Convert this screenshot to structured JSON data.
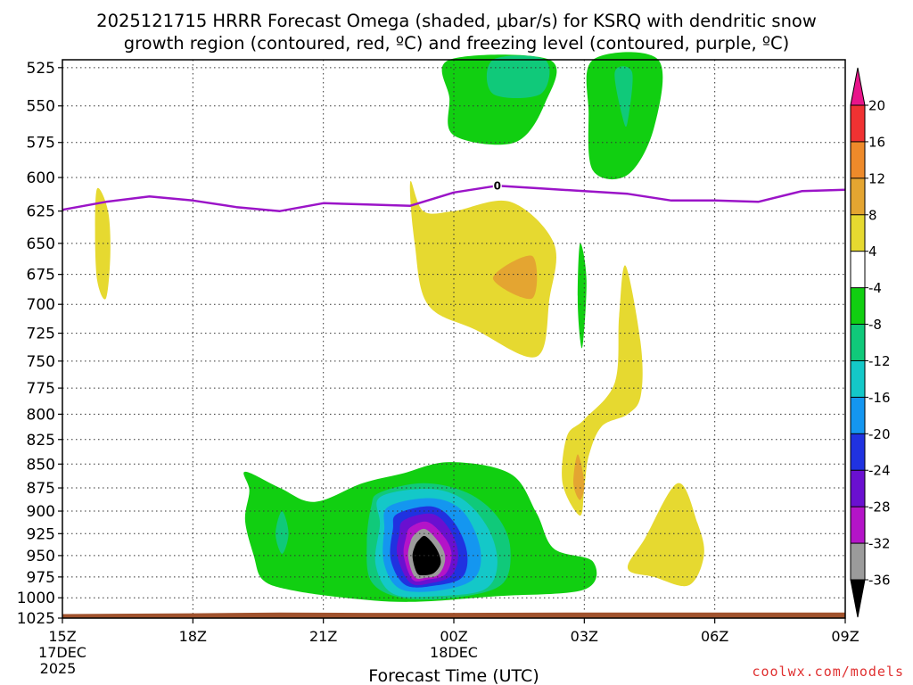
{
  "chart_data": {
    "type": "contour",
    "title_line1": "2025121715 HRRR Forecast Omega (shaded, μbar/s) for KSRQ with dendritic snow",
    "title_line2": "growth region (contoured, red, ºC) and freezing level (contoured, purple, ºC)",
    "xlabel": "Forecast Time (UTC)",
    "x_ticks": [
      {
        "hour": 0,
        "label": "15Z",
        "sub1": "17DEC",
        "sub2": "2025"
      },
      {
        "hour": 3,
        "label": "18Z",
        "sub1": "",
        "sub2": ""
      },
      {
        "hour": 6,
        "label": "21Z",
        "sub1": "",
        "sub2": ""
      },
      {
        "hour": 9,
        "label": "00Z",
        "sub1": "18DEC",
        "sub2": ""
      },
      {
        "hour": 12,
        "label": "03Z",
        "sub1": "",
        "sub2": ""
      },
      {
        "hour": 15,
        "label": "06Z",
        "sub1": "",
        "sub2": ""
      },
      {
        "hour": 18,
        "label": "09Z",
        "sub1": "",
        "sub2": ""
      }
    ],
    "xlim_hours": [
      0,
      18
    ],
    "y_ticks_hpa": [
      525,
      550,
      575,
      600,
      625,
      650,
      675,
      700,
      725,
      750,
      775,
      800,
      825,
      850,
      875,
      900,
      925,
      950,
      975,
      1000,
      1025
    ],
    "ylim_hpa": [
      520,
      1025
    ],
    "colorbar": {
      "labels": [
        "20",
        "16",
        "12",
        "8",
        "4",
        "-4",
        "-8",
        "-12",
        "-16",
        "-20",
        "-24",
        "-28",
        "-32",
        "-36"
      ],
      "bins": [
        {
          "range": [
            16,
            20
          ],
          "color": "#f03232"
        },
        {
          "range": [
            12,
            16
          ],
          "color": "#ee8a2a"
        },
        {
          "range": [
            8,
            12
          ],
          "color": "#e4a531"
        },
        {
          "range": [
            4,
            8
          ],
          "color": "#e6d930"
        },
        {
          "range": [
            -4,
            4
          ],
          "color": "#ffffff"
        },
        {
          "range": [
            -8,
            -4
          ],
          "color": "#11cf11"
        },
        {
          "range": [
            -12,
            -8
          ],
          "color": "#10c97a"
        },
        {
          "range": [
            -16,
            -12
          ],
          "color": "#14c8c8"
        },
        {
          "range": [
            -20,
            -16
          ],
          "color": "#1496f0"
        },
        {
          "range": [
            -24,
            -20
          ],
          "color": "#2032e0"
        },
        {
          "range": [
            -28,
            -24
          ],
          "color": "#6a10d0"
        },
        {
          "range": [
            -32,
            -28
          ],
          "color": "#b414c8"
        },
        {
          "range": [
            -36,
            -32
          ],
          "color": "#9b9b9b"
        }
      ],
      "top_arrow_color": "#e8158a",
      "bottom_arrow_color": "#000000"
    },
    "freezing_level": {
      "label": "0",
      "color": "#9b14c8",
      "points": [
        [
          0,
          624
        ],
        [
          1,
          618
        ],
        [
          2,
          614
        ],
        [
          3,
          617
        ],
        [
          4,
          622
        ],
        [
          5,
          625
        ],
        [
          6,
          619
        ],
        [
          7,
          620
        ],
        [
          8,
          621
        ],
        [
          9,
          611
        ],
        [
          10,
          606
        ],
        [
          11,
          608
        ],
        [
          12,
          610
        ],
        [
          13,
          612
        ],
        [
          14,
          617
        ],
        [
          15,
          617
        ],
        [
          16,
          618
        ],
        [
          17,
          610
        ],
        [
          18,
          609
        ]
      ]
    },
    "terrain_color": "#a0522d",
    "shaded_regions": [
      {
        "value": -6,
        "color": "#11cf11",
        "points": [
          [
            8.9,
            520
          ],
          [
            11.2,
            520
          ],
          [
            11.1,
            548
          ],
          [
            10.4,
            575
          ],
          [
            9.0,
            570
          ],
          [
            8.9,
            545
          ]
        ]
      },
      {
        "value": -6,
        "color": "#11cf11",
        "points": [
          [
            12.2,
            520
          ],
          [
            13.7,
            520
          ],
          [
            13.6,
            565
          ],
          [
            13.0,
            598
          ],
          [
            12.2,
            595
          ],
          [
            12.1,
            555
          ]
        ]
      },
      {
        "value": -10,
        "color": "#10c97a",
        "points": [
          [
            9.9,
            520
          ],
          [
            11.1,
            520
          ],
          [
            11.0,
            542
          ],
          [
            9.9,
            542
          ]
        ]
      },
      {
        "value": -10,
        "color": "#10c97a",
        "points": [
          [
            12.7,
            528
          ],
          [
            13.1,
            528
          ],
          [
            13.0,
            560
          ],
          [
            12.9,
            560
          ]
        ]
      },
      {
        "value": 6,
        "color": "#e6d930",
        "points": [
          [
            0.8,
            608
          ],
          [
            1.05,
            625
          ],
          [
            1.1,
            660
          ],
          [
            1.0,
            695
          ],
          [
            0.8,
            680
          ],
          [
            0.75,
            640
          ]
        ]
      },
      {
        "value": 6,
        "color": "#e6d930",
        "points": [
          [
            8.0,
            603
          ],
          [
            8.3,
            625
          ],
          [
            9.0,
            625
          ],
          [
            10.3,
            618
          ],
          [
            11.3,
            650
          ],
          [
            11.2,
            695
          ],
          [
            10.9,
            746
          ],
          [
            9.5,
            722
          ],
          [
            8.4,
            700
          ],
          [
            8.1,
            650
          ]
        ]
      },
      {
        "value": 10,
        "color": "#e4a531",
        "points": [
          [
            9.9,
            678
          ],
          [
            10.8,
            660
          ],
          [
            10.8,
            695
          ]
        ]
      },
      {
        "value": -6,
        "color": "#11cf11",
        "points": [
          [
            11.9,
            650
          ],
          [
            12.05,
            680
          ],
          [
            11.95,
            738
          ],
          [
            11.85,
            700
          ]
        ]
      },
      {
        "value": 6,
        "color": "#e6d930",
        "points": [
          [
            12.95,
            668
          ],
          [
            13.3,
            735
          ],
          [
            13.3,
            782
          ],
          [
            13.0,
            800
          ],
          [
            12.4,
            812
          ],
          [
            12.1,
            842
          ],
          [
            12.0,
            875
          ],
          [
            11.9,
            905
          ],
          [
            11.5,
            870
          ],
          [
            11.6,
            822
          ],
          [
            12.0,
            805
          ],
          [
            12.7,
            770
          ],
          [
            12.8,
            710
          ]
        ]
      },
      {
        "value": 10,
        "color": "#e4a531",
        "points": [
          [
            11.85,
            840
          ],
          [
            12.0,
            870
          ],
          [
            11.9,
            888
          ],
          [
            11.75,
            870
          ]
        ]
      },
      {
        "value": 6,
        "color": "#e6d930",
        "points": [
          [
            14.15,
            870
          ],
          [
            14.6,
            913
          ],
          [
            14.75,
            950
          ],
          [
            14.4,
            985
          ],
          [
            13.6,
            975
          ],
          [
            13.0,
            965
          ],
          [
            13.4,
            930
          ]
        ]
      },
      {
        "value": -6,
        "color": "#11cf11",
        "points": [
          [
            4.2,
            858
          ],
          [
            5.0,
            875
          ],
          [
            5.8,
            890
          ],
          [
            6.9,
            870
          ],
          [
            7.8,
            860
          ],
          [
            8.9,
            848
          ],
          [
            10.3,
            860
          ],
          [
            10.9,
            902
          ],
          [
            11.3,
            942
          ],
          [
            12.2,
            957
          ],
          [
            12.0,
            990
          ],
          [
            10.0,
            998
          ],
          [
            8.0,
            1005
          ],
          [
            6.5,
            1000
          ],
          [
            5.2,
            990
          ],
          [
            4.6,
            978
          ],
          [
            4.4,
            950
          ],
          [
            4.2,
            910
          ],
          [
            4.3,
            878
          ]
        ]
      },
      {
        "value": -10,
        "color": "#10c97a",
        "points": [
          [
            7.3,
            880
          ],
          [
            8.3,
            870
          ],
          [
            9.3,
            880
          ],
          [
            10.0,
            906
          ],
          [
            10.3,
            942
          ],
          [
            10.1,
            984
          ],
          [
            9.0,
            1000
          ],
          [
            7.8,
            1000
          ],
          [
            7.1,
            980
          ],
          [
            7.0,
            935
          ],
          [
            7.1,
            895
          ]
        ]
      },
      {
        "value": -10,
        "color": "#10c97a",
        "points": [
          [
            5.05,
            900
          ],
          [
            5.2,
            925
          ],
          [
            5.05,
            948
          ],
          [
            4.9,
            925
          ]
        ]
      },
      {
        "value": -14,
        "color": "#14c8c8",
        "points": [
          [
            7.3,
            885
          ],
          [
            8.4,
            876
          ],
          [
            9.2,
            887
          ],
          [
            9.8,
            920
          ],
          [
            10.0,
            960
          ],
          [
            9.7,
            990
          ],
          [
            8.6,
            998
          ],
          [
            7.6,
            995
          ],
          [
            7.2,
            960
          ],
          [
            7.3,
            915
          ]
        ]
      },
      {
        "value": -18,
        "color": "#1496f0",
        "points": [
          [
            7.5,
            895
          ],
          [
            8.5,
            886
          ],
          [
            9.2,
            900
          ],
          [
            9.6,
            940
          ],
          [
            9.5,
            975
          ],
          [
            8.8,
            990
          ],
          [
            7.8,
            990
          ],
          [
            7.4,
            960
          ],
          [
            7.4,
            920
          ]
        ]
      },
      {
        "value": -22,
        "color": "#2032e0",
        "points": [
          [
            7.7,
            903
          ],
          [
            8.5,
            895
          ],
          [
            9.0,
            912
          ],
          [
            9.3,
            945
          ],
          [
            9.2,
            975
          ],
          [
            8.6,
            985
          ],
          [
            7.9,
            985
          ],
          [
            7.55,
            955
          ],
          [
            7.6,
            920
          ]
        ]
      },
      {
        "value": -26,
        "color": "#6a10d0",
        "points": [
          [
            7.85,
            910
          ],
          [
            8.5,
            903
          ],
          [
            8.9,
            920
          ],
          [
            9.1,
            948
          ],
          [
            8.95,
            973
          ],
          [
            8.5,
            982
          ],
          [
            8.0,
            982
          ],
          [
            7.7,
            950
          ],
          [
            7.75,
            925
          ]
        ]
      },
      {
        "value": -30,
        "color": "#b414c8",
        "points": [
          [
            8.0,
            918
          ],
          [
            8.4,
            912
          ],
          [
            8.8,
            930
          ],
          [
            8.95,
            950
          ],
          [
            8.8,
            972
          ],
          [
            8.4,
            978
          ],
          [
            8.05,
            978
          ],
          [
            7.85,
            950
          ],
          [
            7.9,
            930
          ]
        ]
      },
      {
        "value": -34,
        "color": "#9b9b9b",
        "points": [
          [
            8.1,
            926
          ],
          [
            8.35,
            920
          ],
          [
            8.7,
            938
          ],
          [
            8.8,
            955
          ],
          [
            8.65,
            972
          ],
          [
            8.35,
            976
          ],
          [
            8.1,
            975
          ],
          [
            7.95,
            952
          ],
          [
            8.0,
            935
          ]
        ]
      },
      {
        "value": -38,
        "color": "#000000",
        "points": [
          [
            8.2,
            932
          ],
          [
            8.35,
            928
          ],
          [
            8.6,
            942
          ],
          [
            8.7,
            958
          ],
          [
            8.55,
            970
          ],
          [
            8.3,
            973
          ],
          [
            8.15,
            970
          ],
          [
            8.05,
            952
          ],
          [
            8.1,
            940
          ]
        ]
      }
    ]
  },
  "footer": {
    "credit": "coolwx.com/models"
  }
}
